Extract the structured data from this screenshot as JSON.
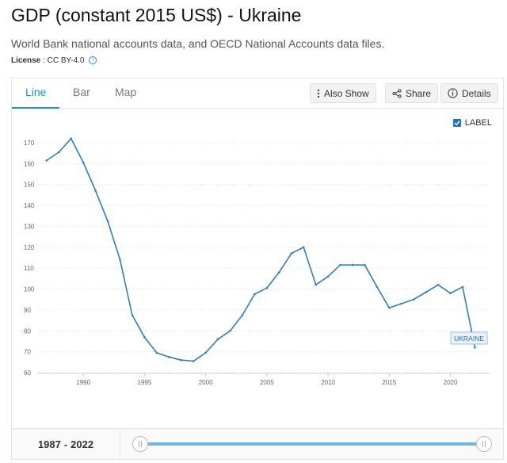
{
  "header": {
    "title": "GDP (constant 2015 US$) - Ukraine",
    "subtitle": "World Bank national accounts data, and OECD National Accounts data files.",
    "license_label": "License",
    "license_sep": " : ",
    "license_value": "CC BY-4.0"
  },
  "tabs": [
    {
      "label": "Line",
      "active": true
    },
    {
      "label": "Bar",
      "active": false
    },
    {
      "label": "Map",
      "active": false
    }
  ],
  "toolbar": {
    "also_show": "Also Show",
    "share": "Share",
    "details": "Details"
  },
  "legend": {
    "checkbox_label": "LABEL",
    "checked": true
  },
  "range": {
    "start": "1987",
    "sep": "-",
    "end": "2022"
  },
  "colors": {
    "line": "#2f7fb8",
    "accent": "#1a8fd6",
    "slider": "#6fb7e3"
  },
  "chart_data": {
    "type": "line",
    "series_label": "UKRAINE",
    "x": [
      1987,
      1988,
      1989,
      1990,
      1991,
      1992,
      1993,
      1994,
      1995,
      1996,
      1997,
      1998,
      1999,
      2000,
      2001,
      2002,
      2003,
      2004,
      2005,
      2006,
      2007,
      2008,
      2009,
      2010,
      2011,
      2012,
      2013,
      2014,
      2015,
      2016,
      2017,
      2018,
      2019,
      2020,
      2021,
      2022
    ],
    "y": [
      161.5,
      165.5,
      172,
      160.5,
      147,
      132.5,
      114,
      87.5,
      77,
      69.5,
      67.5,
      66,
      65.5,
      69.5,
      76,
      80,
      87.5,
      97.5,
      100.5,
      108,
      117,
      120,
      102,
      106,
      111.5,
      111.5,
      111.5,
      101,
      91,
      93,
      95,
      98.5,
      102,
      98,
      101,
      72
    ],
    "unit": "",
    "xlim": [
      1986.3,
      2023.2
    ],
    "ylim": [
      60,
      170
    ],
    "x_ticks": [
      1990,
      1995,
      2000,
      2005,
      2010,
      2015,
      2020
    ],
    "y_ticks": [
      60,
      70,
      80,
      90,
      100,
      110,
      120,
      130,
      140,
      150,
      160,
      170
    ],
    "grid": true
  }
}
